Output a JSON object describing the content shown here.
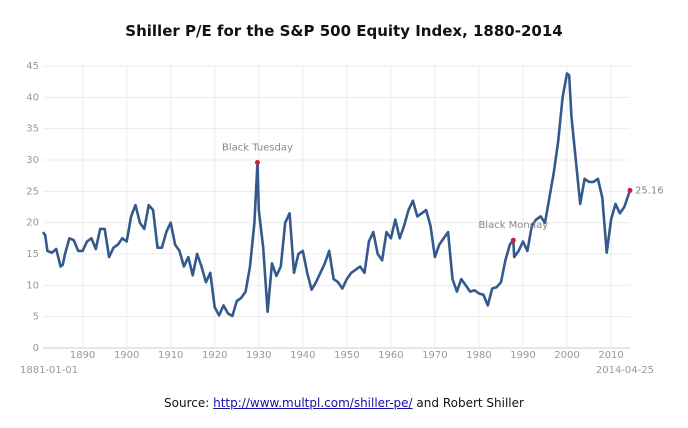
{
  "chart_data": {
    "type": "line",
    "title": "Shiller P/E for the S&P 500 Equity Index, 1880-2014",
    "x": [
      1881,
      1881.5,
      1882,
      1883,
      1884,
      1885,
      1885.5,
      1886,
      1887,
      1888,
      1889,
      1890,
      1891,
      1892,
      1893,
      1894,
      1895,
      1896,
      1897,
      1898,
      1899,
      1900,
      1901,
      1902,
      1903,
      1904,
      1905,
      1906,
      1907,
      1908,
      1909,
      1910,
      1911,
      1912,
      1913,
      1914,
      1915,
      1916,
      1917,
      1918,
      1919,
      1920,
      1921,
      1922,
      1923,
      1924,
      1925,
      1926,
      1927,
      1928,
      1929,
      1929.7,
      1930,
      1931,
      1932,
      1933,
      1934,
      1935,
      1936,
      1937,
      1938,
      1939,
      1940,
      1941,
      1942,
      1943,
      1944,
      1945,
      1946,
      1947,
      1948,
      1949,
      1950,
      1951,
      1952,
      1953,
      1954,
      1955,
      1956,
      1957,
      1958,
      1959,
      1960,
      1961,
      1962,
      1963,
      1964,
      1965,
      1966,
      1967,
      1968,
      1969,
      1970,
      1971,
      1972,
      1973,
      1974,
      1975,
      1976,
      1977,
      1978,
      1979,
      1980,
      1981,
      1982,
      1983,
      1984,
      1985,
      1986,
      1987,
      1987.8,
      1988,
      1989,
      1990,
      1991,
      1992,
      1993,
      1994,
      1995,
      1996,
      1997,
      1998,
      1999,
      2000,
      2000.5,
      2001,
      2002,
      2003,
      2004,
      2005,
      2006,
      2007,
      2008,
      2009,
      2010,
      2011,
      2012,
      2013,
      2014.3
    ],
    "series": [
      {
        "name": "Shiller P/E",
        "color": "#34598c",
        "values": [
          18.5,
          18,
          15.5,
          15.2,
          15.8,
          13,
          13.3,
          15,
          17.5,
          17.2,
          15.5,
          15.5,
          17,
          17.5,
          15.8,
          19,
          19,
          14.5,
          16,
          16.5,
          17.5,
          17,
          21,
          22.8,
          20,
          19,
          22.8,
          22,
          16,
          16,
          18.5,
          20,
          16.5,
          15.5,
          13,
          14.5,
          11.6,
          15,
          13,
          10.5,
          12,
          6.5,
          5.2,
          6.8,
          5.5,
          5.1,
          7.5,
          8,
          9,
          13,
          20,
          29.6,
          22,
          16,
          5.8,
          13.5,
          11.5,
          13,
          20,
          21.5,
          12,
          15,
          15.5,
          12,
          9.3,
          10.5,
          12,
          13.5,
          15.5,
          11,
          10.5,
          9.5,
          11,
          12,
          12.5,
          13,
          12,
          17,
          18.5,
          15,
          14,
          18.5,
          17.5,
          20.5,
          17.5,
          19.5,
          22,
          23.5,
          21,
          21.5,
          22,
          19.5,
          14.5,
          16.5,
          17.5,
          18.5,
          11,
          9,
          11,
          10,
          9,
          9.2,
          8.7,
          8.5,
          6.8,
          9.5,
          9.7,
          10.5,
          14,
          16.5,
          17.2,
          14.5,
          15.5,
          17,
          15.5,
          19.5,
          20.5,
          21,
          20,
          24,
          28,
          33,
          40,
          43.8,
          43.5,
          37,
          30,
          23,
          27,
          26.5,
          26.5,
          27,
          24,
          15.2,
          20.5,
          23,
          21.5,
          22.5,
          25.16
        ]
      }
    ],
    "xlim": [
      1881,
      2014.3
    ],
    "xticks": [
      1890,
      1900,
      1910,
      1920,
      1930,
      1940,
      1950,
      1960,
      1970,
      1980,
      1990,
      2000,
      2010
    ],
    "range_labels": [
      "1881-01-01",
      "2014-04-25"
    ],
    "ylim": [
      0,
      45
    ],
    "yticks": [
      0,
      5,
      10,
      15,
      20,
      25,
      30,
      35,
      40,
      45
    ],
    "grid": true,
    "annotations": [
      {
        "label": "Black Tuesday",
        "x": 1929.7,
        "y": 29.6,
        "color": "#cc1f3d"
      },
      {
        "label": "Black Monday",
        "x": 1987.8,
        "y": 17.2,
        "color": "#cc1f3d"
      },
      {
        "label": "25.16",
        "x": 2014.3,
        "y": 25.16,
        "color": "#cc1f3d"
      }
    ],
    "source": {
      "prefix": "Source: ",
      "link": "http://www.multpl.com/shiller-pe/",
      "suffix": " and Robert Shiller"
    }
  }
}
